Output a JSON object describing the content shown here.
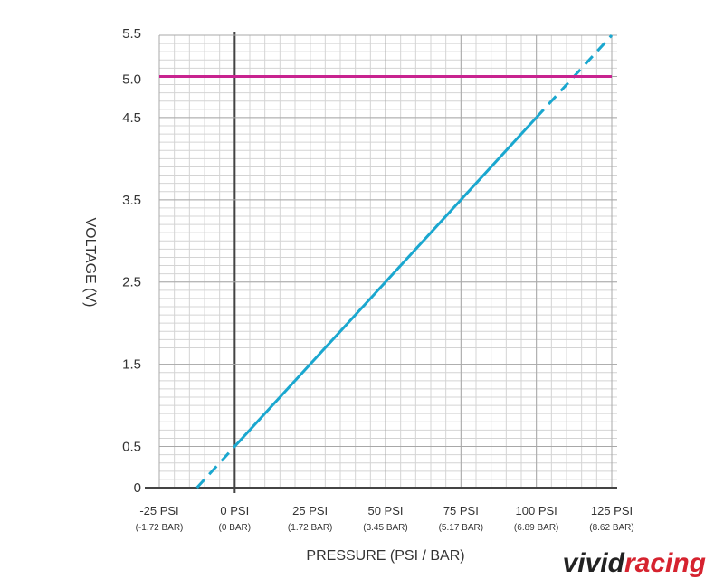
{
  "chart_data": {
    "type": "line",
    "xlabel": "PRESSURE (PSI / BAR)",
    "ylabel": "VOLTAGE (V)",
    "xlim": [
      -25,
      125
    ],
    "ylim": [
      0,
      5.5
    ],
    "x_ticks": [
      {
        "value": -25,
        "label": "-25 PSI",
        "sublabel": "(-1.72 BAR)"
      },
      {
        "value": 0,
        "label": "0 PSI",
        "sublabel": "(0 BAR)"
      },
      {
        "value": 25,
        "label": "25 PSI",
        "sublabel": "(1.72 BAR)"
      },
      {
        "value": 50,
        "label": "50 PSI",
        "sublabel": "(3.45 BAR)"
      },
      {
        "value": 75,
        "label": "75 PSI",
        "sublabel": "(5.17 BAR)"
      },
      {
        "value": 100,
        "label": "100 PSI",
        "sublabel": "(6.89 BAR)"
      },
      {
        "value": 125,
        "label": "125 PSI",
        "sublabel": "(8.62 BAR)"
      }
    ],
    "y_ticks": [
      {
        "value": 0,
        "label": "0"
      },
      {
        "value": 0.5,
        "label": "0.5"
      },
      {
        "value": 1.5,
        "label": "1.5"
      },
      {
        "value": 2.5,
        "label": "2.5"
      },
      {
        "value": 3.5,
        "label": "3.5"
      },
      {
        "value": 4.5,
        "label": "4.5"
      },
      {
        "value": 5.0,
        "label": "5.0"
      },
      {
        "value": 5.5,
        "label": "5.5"
      }
    ],
    "series": [
      {
        "style": "solid",
        "color": "#1aa7cf",
        "x": [
          0,
          100
        ],
        "y": [
          0.5,
          4.5
        ]
      },
      {
        "style": "dashed",
        "color": "#1aa7cf",
        "x": [
          -12.5,
          0
        ],
        "y": [
          0,
          0.5
        ]
      },
      {
        "style": "dashed",
        "color": "#1aa7cf",
        "x": [
          100,
          125
        ],
        "y": [
          4.5,
          5.5
        ]
      },
      {
        "style": "solid",
        "color": "#c8238f",
        "x": [
          -25,
          125
        ],
        "y": [
          5.0,
          5.0
        ]
      }
    ],
    "grid": true,
    "minor_x_step": 5,
    "minor_y_step": 0.1
  },
  "watermark": {
    "part1": "vivid",
    "part2": "racing",
    "color1": "#222222",
    "color2": "#d6232f"
  }
}
